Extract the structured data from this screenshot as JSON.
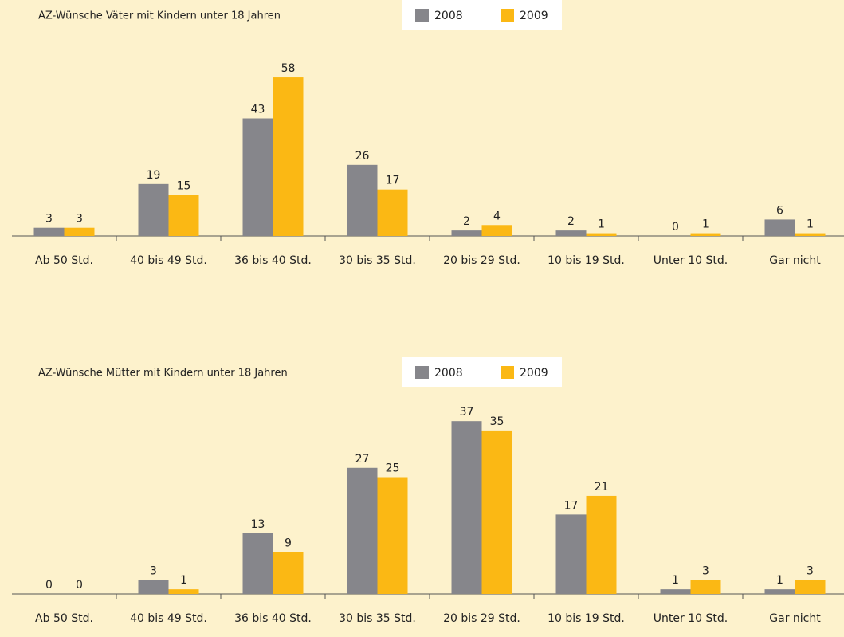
{
  "chart_data": [
    {
      "type": "bar",
      "title": "AZ-Wünsche  Väter mit Kindern unter 18 Jahren",
      "categories": [
        "Ab 50 Std.",
        "40 bis 49 Std.",
        "36 bis 40 Std.",
        "30 bis 35 Std.",
        "20 bis 29 Std.",
        "10 bis 19 Std.",
        "Unter 10 Std.",
        "Gar nicht"
      ],
      "series": [
        {
          "name": "2008",
          "color": "#86868b",
          "values": [
            3,
            19,
            43,
            26,
            2,
            2,
            0,
            6
          ]
        },
        {
          "name": "2009",
          "color": "#fbb814",
          "values": [
            3,
            15,
            58,
            17,
            4,
            1,
            1,
            1
          ]
        }
      ]
    },
    {
      "type": "bar",
      "title": "AZ-Wünsche  Mütter mit Kindern unter 18 Jahren",
      "categories": [
        "Ab 50 Std.",
        "40 bis 49 Std.",
        "36 bis 40 Std.",
        "30 bis 35 Std.",
        "20 bis 29 Std.",
        "10 bis 19 Std.",
        "Unter 10 Std.",
        "Gar nicht"
      ],
      "series": [
        {
          "name": "2008",
          "color": "#86868b",
          "values": [
            0,
            3,
            13,
            27,
            37,
            17,
            1,
            1
          ]
        },
        {
          "name": "2009",
          "color": "#fbb814",
          "values": [
            0,
            1,
            9,
            25,
            35,
            21,
            3,
            3
          ]
        }
      ]
    }
  ]
}
